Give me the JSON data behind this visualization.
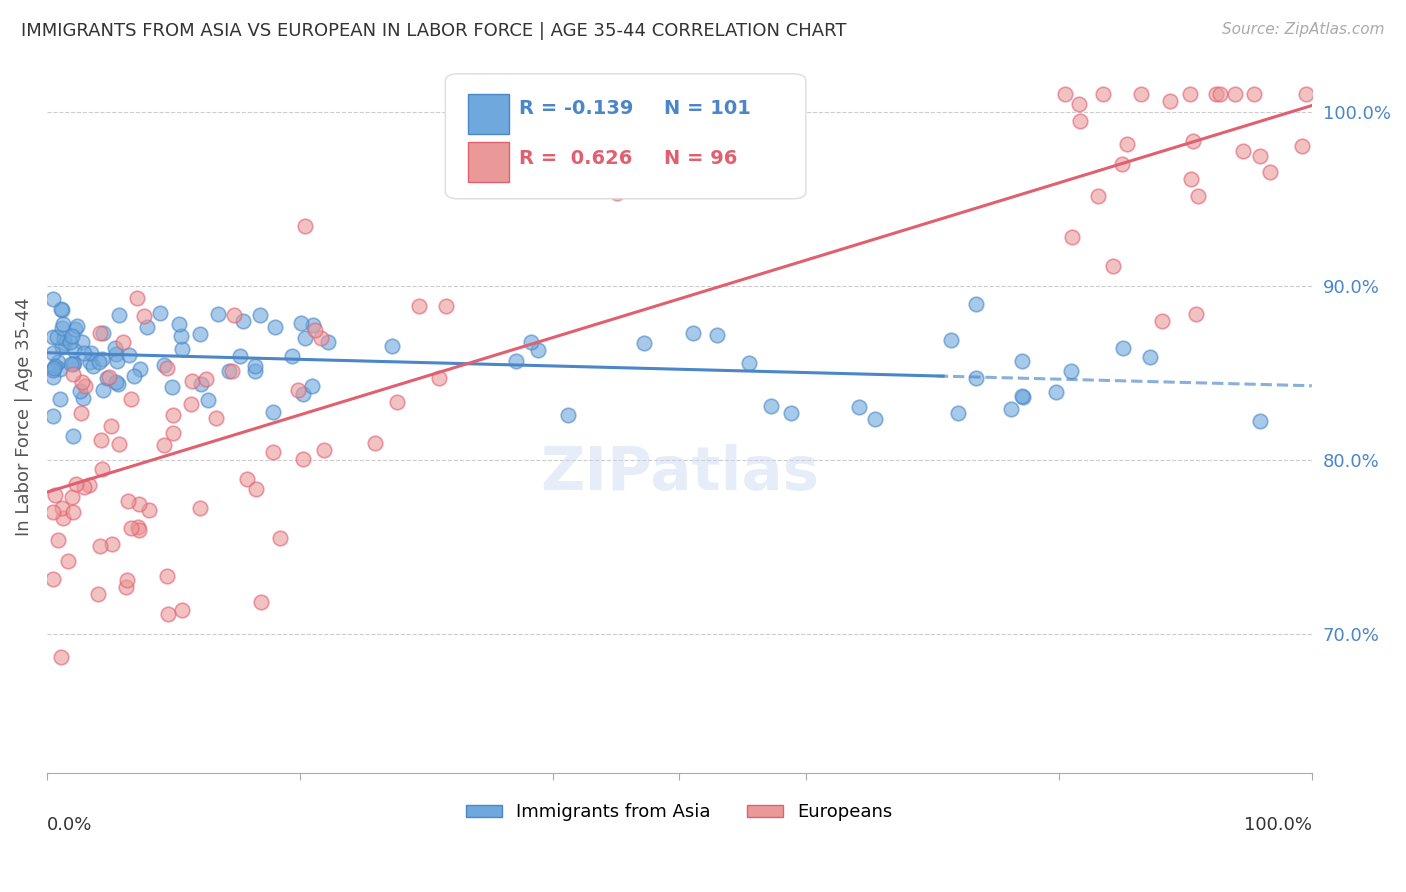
{
  "title": "IMMIGRANTS FROM ASIA VS EUROPEAN IN LABOR FORCE | AGE 35-44 CORRELATION CHART",
  "source": "Source: ZipAtlas.com",
  "ylabel": "In Labor Force | Age 35-44",
  "legend_label_blue": "Immigrants from Asia",
  "legend_label_pink": "Europeans",
  "R_blue": -0.139,
  "N_blue": 101,
  "R_pink": 0.626,
  "N_pink": 96,
  "color_blue": "#6fa8dc",
  "color_pink": "#ea9999",
  "color_blue_line": "#4a86c8",
  "color_pink_line": "#e06070",
  "color_axis_label": "#4a86c8",
  "ytick_color": "#4a86c8",
  "title_color": "#333333",
  "xlim": [
    0.0,
    1.0
  ],
  "ylim": [
    0.62,
    1.03
  ],
  "yticks": [
    0.7,
    0.8,
    0.9,
    1.0
  ],
  "ytick_labels": [
    "70.0%",
    "80.0%",
    "90.0%",
    "100.0%"
  ],
  "grid_color": "#cccccc"
}
